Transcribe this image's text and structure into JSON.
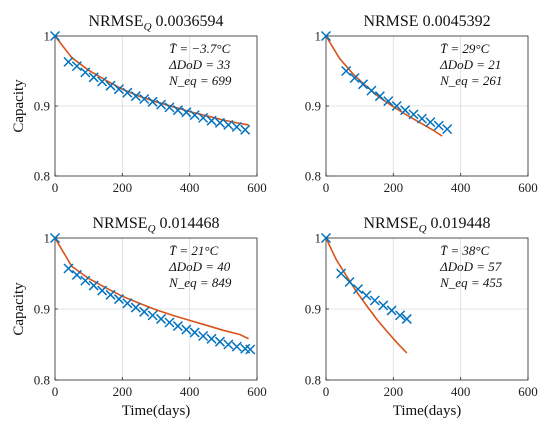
{
  "chart_data": [
    {
      "type": "line",
      "title": "NRMSE_Q 0.0036594",
      "title_main": "NRMSE",
      "title_sub": "Q",
      "title_value": "0.0036594",
      "annotations": [
        "T̄ = −3.7°C",
        "ΔDoD = 33",
        "N_eq = 699"
      ],
      "ylabel": "Capacity",
      "xlabel": "",
      "xlim": [
        0,
        600
      ],
      "ylim": [
        0.8,
        1.0
      ],
      "xticks": [
        0,
        200,
        400,
        600
      ],
      "yticks": [
        0.8,
        0.9,
        1.0
      ],
      "ytick_labels": [
        "0.8",
        "0.9",
        "1"
      ],
      "grid": true,
      "series": [
        {
          "kind": "model",
          "x": [
            0,
            50,
            100,
            150,
            200,
            250,
            300,
            350,
            400,
            450,
            500,
            550,
            575
          ],
          "y": [
            1.0,
            0.969,
            0.951,
            0.937,
            0.924,
            0.914,
            0.906,
            0.899,
            0.892,
            0.886,
            0.88,
            0.875,
            0.873
          ]
        },
        {
          "kind": "measured",
          "x": [
            0,
            40,
            65,
            90,
            115,
            140,
            165,
            190,
            215,
            240,
            265,
            290,
            315,
            340,
            365,
            390,
            415,
            440,
            465,
            490,
            515,
            540,
            565
          ],
          "y": [
            1.0,
            0.963,
            0.957,
            0.948,
            0.941,
            0.935,
            0.929,
            0.924,
            0.919,
            0.914,
            0.91,
            0.906,
            0.902,
            0.898,
            0.894,
            0.891,
            0.887,
            0.883,
            0.879,
            0.876,
            0.873,
            0.87,
            0.866
          ]
        }
      ]
    },
    {
      "type": "line",
      "title": "NRMSE 0.0045392",
      "title_main": "NRMSE",
      "title_sub": "",
      "title_value": "0.0045392",
      "annotations": [
        "T̄ = 29°C",
        "ΔDoD = 21",
        "N_eq = 261"
      ],
      "ylabel": "",
      "xlabel": "",
      "xlim": [
        0,
        600
      ],
      "ylim": [
        0.8,
        1.0
      ],
      "xticks": [
        0,
        200,
        400,
        600
      ],
      "yticks": [
        0.8,
        0.9,
        1.0
      ],
      "ytick_labels": [
        "0.8",
        "0.9",
        "1"
      ],
      "grid": true,
      "series": [
        {
          "kind": "model",
          "x": [
            0,
            40,
            80,
            120,
            160,
            200,
            240,
            280,
            320,
            345
          ],
          "y": [
            1.0,
            0.968,
            0.946,
            0.928,
            0.912,
            0.899,
            0.887,
            0.876,
            0.865,
            0.857
          ]
        },
        {
          "kind": "measured",
          "x": [
            0,
            60,
            85,
            110,
            135,
            160,
            185,
            210,
            235,
            260,
            285,
            310,
            335,
            360
          ],
          "y": [
            1.0,
            0.95,
            0.94,
            0.931,
            0.922,
            0.914,
            0.907,
            0.9,
            0.894,
            0.888,
            0.882,
            0.877,
            0.872,
            0.867
          ]
        }
      ]
    },
    {
      "type": "line",
      "title": "NRMSE_Q 0.014468",
      "title_main": "NRMSE",
      "title_sub": "Q",
      "title_value": "0.014468",
      "annotations": [
        "T̄ = 21°C",
        "ΔDoD = 40",
        "N_eq = 849"
      ],
      "ylabel": "Capacity",
      "xlabel": "Time(days)",
      "xlim": [
        0,
        600
      ],
      "ylim": [
        0.8,
        1.0
      ],
      "xticks": [
        0,
        200,
        400,
        600
      ],
      "yticks": [
        0.8,
        0.9,
        1.0
      ],
      "ytick_labels": [
        "0.8",
        "0.9",
        "1"
      ],
      "grid": true,
      "series": [
        {
          "kind": "model",
          "x": [
            0,
            50,
            100,
            150,
            200,
            250,
            300,
            350,
            400,
            450,
            500,
            550,
            575
          ],
          "y": [
            1.0,
            0.96,
            0.943,
            0.93,
            0.918,
            0.908,
            0.899,
            0.891,
            0.884,
            0.877,
            0.87,
            0.864,
            0.858
          ]
        },
        {
          "kind": "measured",
          "x": [
            0,
            40,
            65,
            90,
            115,
            140,
            165,
            190,
            215,
            240,
            265,
            290,
            315,
            340,
            365,
            390,
            415,
            440,
            465,
            490,
            515,
            540,
            565,
            580
          ],
          "y": [
            1.0,
            0.957,
            0.948,
            0.94,
            0.933,
            0.926,
            0.92,
            0.914,
            0.908,
            0.902,
            0.896,
            0.891,
            0.886,
            0.881,
            0.876,
            0.871,
            0.867,
            0.862,
            0.858,
            0.854,
            0.85,
            0.847,
            0.844,
            0.843
          ]
        }
      ]
    },
    {
      "type": "line",
      "title": "NRMSE_Q 0.019448",
      "title_main": "NRMSE",
      "title_sub": "Q",
      "title_value": "0.019448",
      "annotations": [
        "T̄ = 38°C",
        "ΔDoD = 57",
        "N_eq = 455"
      ],
      "ylabel": "",
      "xlabel": "Time(days)",
      "xlim": [
        0,
        600
      ],
      "ylim": [
        0.8,
        1.0
      ],
      "xticks": [
        0,
        200,
        400,
        600
      ],
      "yticks": [
        0.8,
        0.9,
        1.0
      ],
      "ytick_labels": [
        "0.8",
        "0.9",
        "1"
      ],
      "grid": true,
      "series": [
        {
          "kind": "model",
          "x": [
            0,
            30,
            60,
            90,
            120,
            150,
            180,
            210,
            240
          ],
          "y": [
            1.0,
            0.97,
            0.947,
            0.925,
            0.905,
            0.886,
            0.869,
            0.853,
            0.838
          ]
        },
        {
          "kind": "measured",
          "x": [
            0,
            45,
            70,
            95,
            120,
            145,
            170,
            195,
            220,
            240
          ],
          "y": [
            1.0,
            0.95,
            0.938,
            0.928,
            0.919,
            0.912,
            0.905,
            0.898,
            0.891,
            0.886
          ]
        }
      ]
    }
  ],
  "colors": {
    "model": "#d95319",
    "measured": "#0072bd",
    "axis": "#262626",
    "grid": "#dcdcdc"
  }
}
